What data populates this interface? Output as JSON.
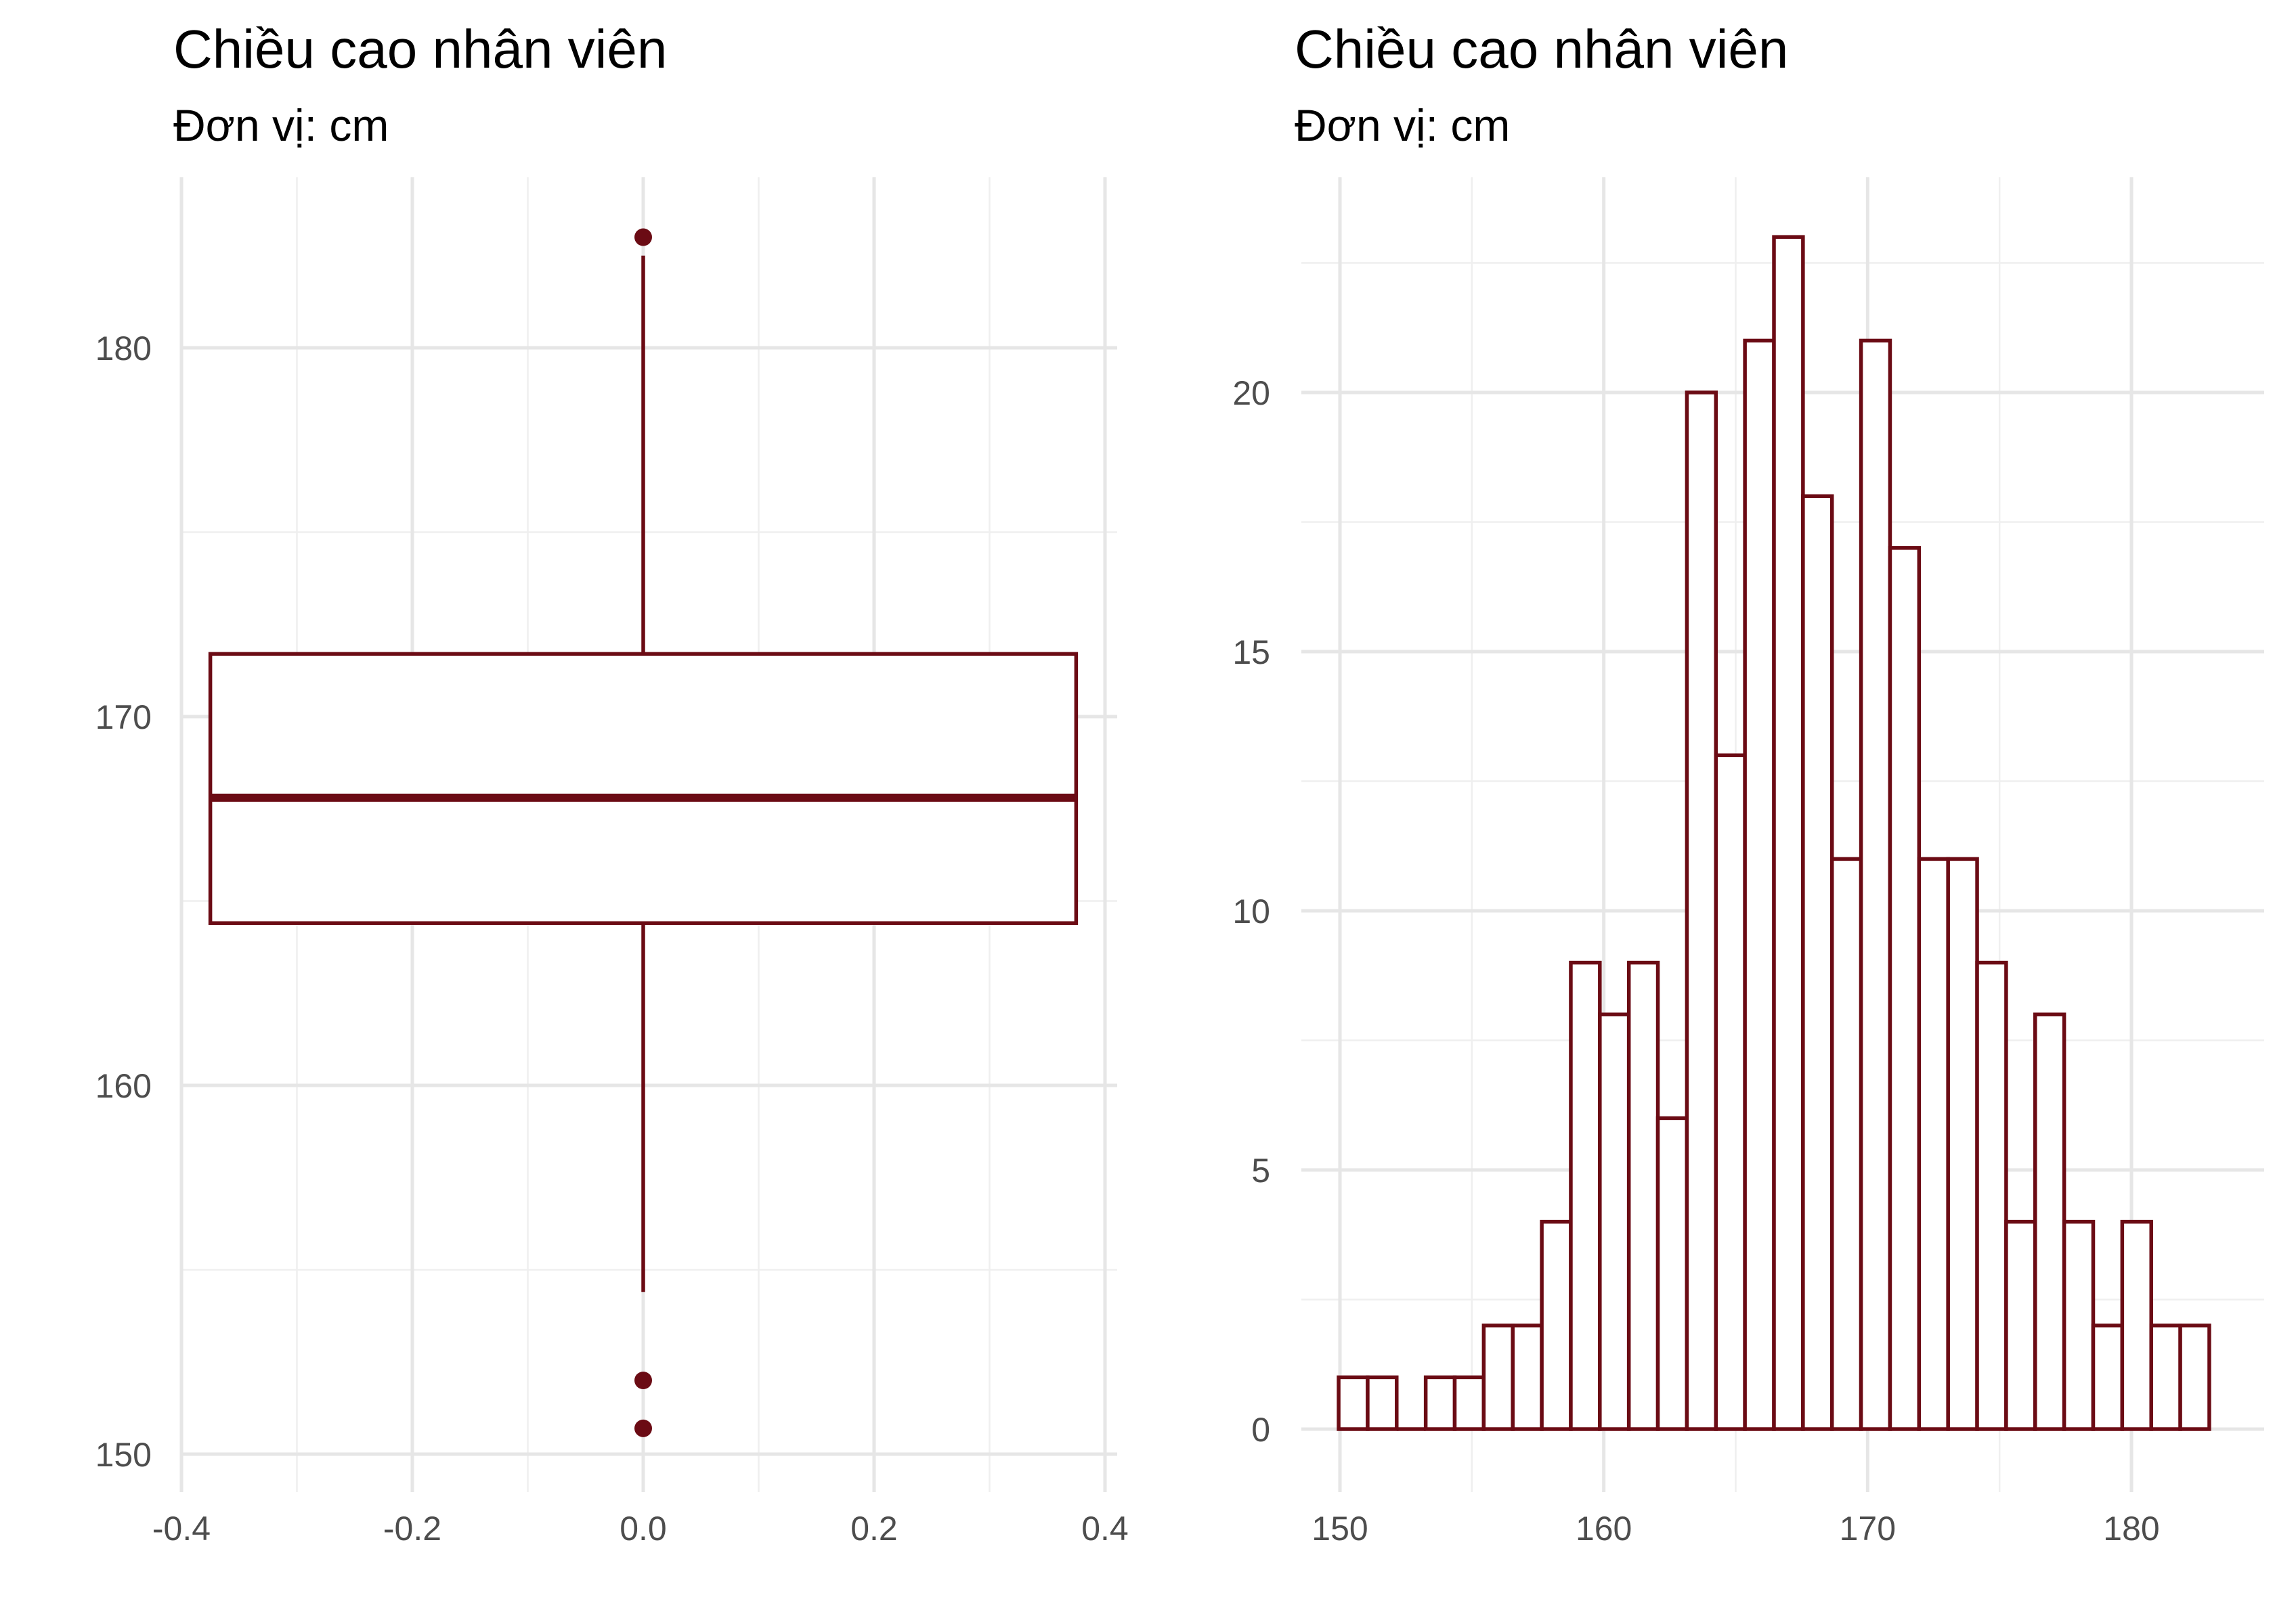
{
  "chart_data": [
    {
      "type": "boxplot",
      "title": "Chiều cao nhân viên",
      "subtitle": "Đơn vị: cm",
      "xlabel": "",
      "ylabel": "",
      "xlim": [
        -0.4,
        0.4
      ],
      "ylim": [
        150,
        183.5
      ],
      "x_ticks": [
        "-0.4",
        "-0.2",
        "0.0",
        "0.2",
        "0.4"
      ],
      "y_ticks": [
        "150",
        "160",
        "170",
        "180"
      ],
      "grid": true,
      "box": {
        "x_center": 0.0,
        "x_min": -0.375,
        "x_max": 0.375,
        "whisker_low": 154.4,
        "q1": 164.4,
        "median": 167.8,
        "q3": 171.7,
        "whisker_high": 182.5,
        "outliers": [
          183.0,
          152.0,
          150.7
        ]
      },
      "color": "#6b0b14"
    },
    {
      "type": "histogram",
      "title": "Chiều cao nhân viên",
      "subtitle": "Đơn vị: cm",
      "xlabel": "",
      "ylabel": "",
      "xlim": [
        150,
        183.5
      ],
      "ylim": [
        0,
        23
      ],
      "x_ticks": [
        "150",
        "160",
        "170",
        "180"
      ],
      "y_ticks": [
        "0",
        "5",
        "10",
        "15",
        "20"
      ],
      "grid": true,
      "bin_start": 149.95,
      "bin_width": 1.1,
      "counts": [
        1,
        1,
        0,
        1,
        1,
        2,
        2,
        4,
        9,
        8,
        9,
        6,
        20,
        13,
        21,
        23,
        18,
        11,
        21,
        17,
        11,
        11,
        9,
        4,
        8,
        4,
        2,
        4,
        2,
        2
      ],
      "color": "#6b0b14"
    }
  ]
}
